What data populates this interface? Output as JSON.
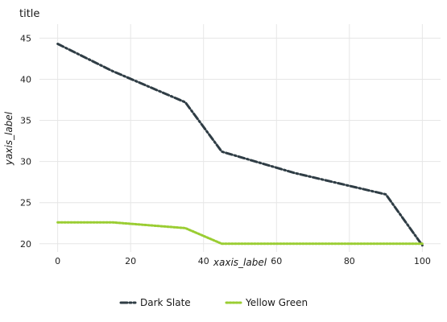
{
  "chart_data": {
    "type": "line",
    "title": "title",
    "xlabel": "xaxis_label",
    "ylabel": "yaxis_label",
    "xlim": [
      -5,
      105
    ],
    "ylim": [
      19.0,
      46.7
    ],
    "xticks": [
      0,
      20,
      40,
      60,
      80,
      100
    ],
    "yticks": [
      20,
      25,
      30,
      35,
      40,
      45
    ],
    "grid": true,
    "legend_position": "bottom",
    "series": [
      {
        "name": "Dark Slate",
        "color": "#2f3d45",
        "style": "dashdot",
        "x": [
          0,
          15,
          35,
          45,
          65,
          90,
          100
        ],
        "y": [
          44.3,
          41.0,
          37.2,
          31.2,
          28.6,
          26.0,
          19.8
        ]
      },
      {
        "name": "Yellow Green",
        "color": "#9acd32",
        "style": "dotted",
        "x": [
          0,
          15,
          35,
          45,
          65,
          90,
          100
        ],
        "y": [
          22.6,
          22.6,
          21.9,
          20.0,
          20.0,
          20.0,
          20.0
        ]
      }
    ]
  }
}
